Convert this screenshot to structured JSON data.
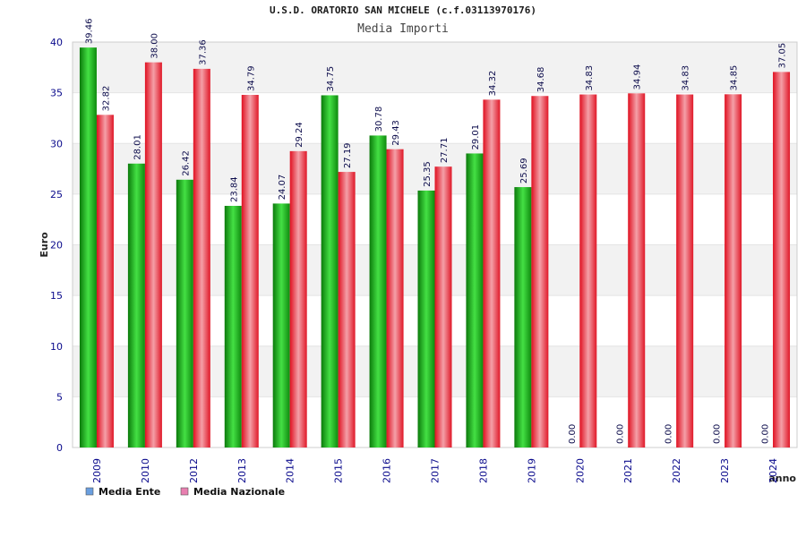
{
  "colors": {
    "ente": "#22bb22",
    "nazionale": "#ee2233",
    "axis_text": "#0a0a8c",
    "band": "#f2f2f2",
    "legend_ente": "#6a9fe0",
    "legend_nazionale": "#e87fb0"
  },
  "chart_data": {
    "type": "bar",
    "title": "U.S.D. ORATORIO SAN MICHELE (c.f.03113970176)",
    "subtitle": "Media Importi",
    "xlabel": "anno",
    "ylabel": "Euro",
    "ylim": [
      0,
      40
    ],
    "yticks": [
      "0",
      "5",
      "10",
      "15",
      "20",
      "25",
      "30",
      "35",
      "40"
    ],
    "categories": [
      "2009",
      "2010",
      "2012",
      "2013",
      "2014",
      "2015",
      "2016",
      "2017",
      "2018",
      "2019",
      "2020",
      "2021",
      "2022",
      "2023",
      "2024"
    ],
    "series": [
      {
        "name": "Media Ente",
        "values": [
          39.46,
          28.01,
          26.42,
          23.84,
          24.07,
          34.75,
          30.78,
          25.35,
          29.01,
          25.69,
          0.0,
          0.0,
          0.0,
          0.0,
          0.0
        ],
        "labels": [
          "39.46",
          "28.01",
          "26.42",
          "23.84",
          "24.07",
          "34.75",
          "30.78",
          "25.35",
          "29.01",
          "25.69",
          "0.00",
          "0.00",
          "0.00",
          "0.00",
          "0.00"
        ]
      },
      {
        "name": "Media Nazionale",
        "values": [
          32.82,
          38.0,
          37.36,
          34.79,
          29.24,
          27.19,
          29.43,
          27.71,
          34.32,
          34.68,
          34.83,
          34.94,
          34.83,
          34.85,
          37.05
        ],
        "labels": [
          "32.82",
          "38.00",
          "37.36",
          "34.79",
          "29.24",
          "27.19",
          "29.43",
          "27.71",
          "34.32",
          "34.68",
          "34.83",
          "34.94",
          "34.83",
          "34.85",
          "37.05"
        ]
      }
    ],
    "grid": "horizontal-bands",
    "legend": "bottom-left"
  }
}
